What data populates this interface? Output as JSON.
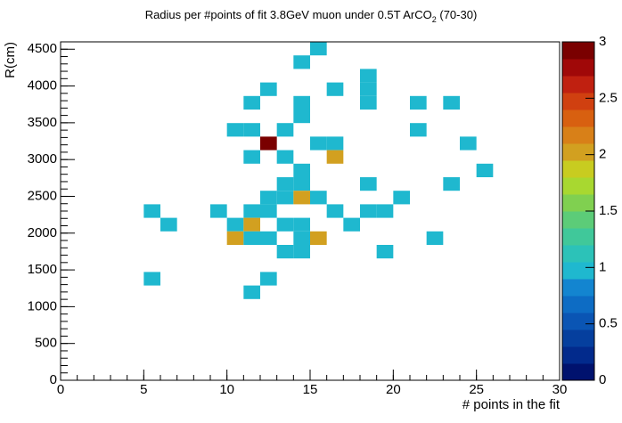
{
  "chart_data": {
    "type": "heatmap",
    "title": "Radius per #points of fit 3.8GeV muon under 0.5T ArCO",
    "title_subscript": "2",
    "title_suffix": " (70-30)",
    "x_label": "# points in the fit",
    "y_label": "R(cm)",
    "xlim": [
      0,
      30
    ],
    "ylim": [
      0,
      4600
    ],
    "zlim": [
      0,
      3
    ],
    "x_bin_width": 1,
    "y_bin_width": 184,
    "xticks": [
      0,
      5,
      10,
      15,
      20,
      25,
      30
    ],
    "yticks": [
      0,
      500,
      1000,
      1500,
      2000,
      2500,
      3000,
      3500,
      4000,
      4500
    ],
    "zticks": [
      0,
      0.5,
      1,
      1.5,
      2,
      2.5,
      3
    ],
    "xticks_minor": [
      0,
      1,
      2,
      3,
      4,
      5,
      6,
      7,
      8,
      9,
      10,
      11,
      12,
      13,
      14,
      15,
      16,
      17,
      18,
      19,
      20,
      21,
      22,
      23,
      24,
      25,
      26,
      27,
      28,
      29,
      30
    ],
    "yticks_minor": [
      0,
      100,
      200,
      300,
      400,
      500,
      600,
      700,
      800,
      900,
      1000,
      1100,
      1200,
      1300,
      1400,
      1500,
      1600,
      1700,
      1800,
      1900,
      2000,
      2100,
      2200,
      2300,
      2400,
      2500,
      2600,
      2700,
      2800,
      2900,
      3000,
      3100,
      3200,
      3300,
      3400,
      3500,
      3600,
      3700,
      3800,
      3900,
      4000,
      4100,
      4200,
      4300,
      4400,
      4500,
      4600
    ],
    "palette": [
      "#00126e",
      "#022a8c",
      "#053f9e",
      "#0a55b4",
      "#0d6cc4",
      "#1385d0",
      "#1fb8cf",
      "#2cc2b8",
      "#40c89a",
      "#5ccc78",
      "#80d050",
      "#a8d830",
      "#c8cc20",
      "#d2a020",
      "#d88018",
      "#d86010",
      "#d04010",
      "#c02010",
      "#a00808",
      "#7a0000"
    ],
    "x": [
      15.5,
      14.5,
      18.5,
      12.5,
      16.5,
      18.5,
      11.5,
      14.5,
      18.5,
      21.5,
      23.5,
      14.5,
      10.5,
      11.5,
      13.5,
      21.5,
      12.5,
      15.5,
      16.5,
      24.5,
      11.5,
      13.5,
      16.5,
      14.5,
      25.5,
      13.5,
      14.5,
      18.5,
      23.5,
      12.5,
      13.5,
      14.5,
      15.5,
      20.5,
      5.5,
      9.5,
      11.5,
      12.5,
      16.5,
      18.5,
      19.5,
      6.5,
      10.5,
      11.5,
      13.5,
      14.5,
      17.5,
      10.5,
      11.5,
      12.5,
      14.5,
      15.5,
      22.5,
      13.5,
      14.5,
      19.5,
      5.5,
      12.5,
      11.5
    ],
    "y": [
      4508,
      4324,
      4140,
      3956,
      3956,
      3956,
      3772,
      3772,
      3772,
      3772,
      3772,
      3588,
      3404,
      3404,
      3404,
      3404,
      3220,
      3220,
      3220,
      3220,
      3036,
      3036,
      3036,
      2852,
      2852,
      2668,
      2668,
      2668,
      2668,
      2484,
      2484,
      2484,
      2484,
      2484,
      2300,
      2300,
      2300,
      2300,
      2300,
      2300,
      2300,
      2116,
      2116,
      2116,
      2116,
      2116,
      2116,
      1932,
      1932,
      1932,
      1932,
      1932,
      1932,
      1748,
      1748,
      1748,
      1380,
      1380,
      1196
    ],
    "values": [
      1,
      1,
      1,
      1,
      1,
      1,
      1,
      1,
      1,
      1,
      1,
      1,
      1,
      1,
      1,
      1,
      3,
      1,
      1,
      1,
      1,
      1,
      2,
      1,
      1,
      1,
      1,
      1,
      1,
      1,
      1,
      2,
      1,
      1,
      1,
      1,
      1,
      1,
      1,
      1,
      1,
      1,
      1,
      2,
      1,
      1,
      1,
      2,
      1,
      1,
      1,
      2,
      1,
      1,
      1,
      1,
      1,
      1,
      1
    ]
  }
}
